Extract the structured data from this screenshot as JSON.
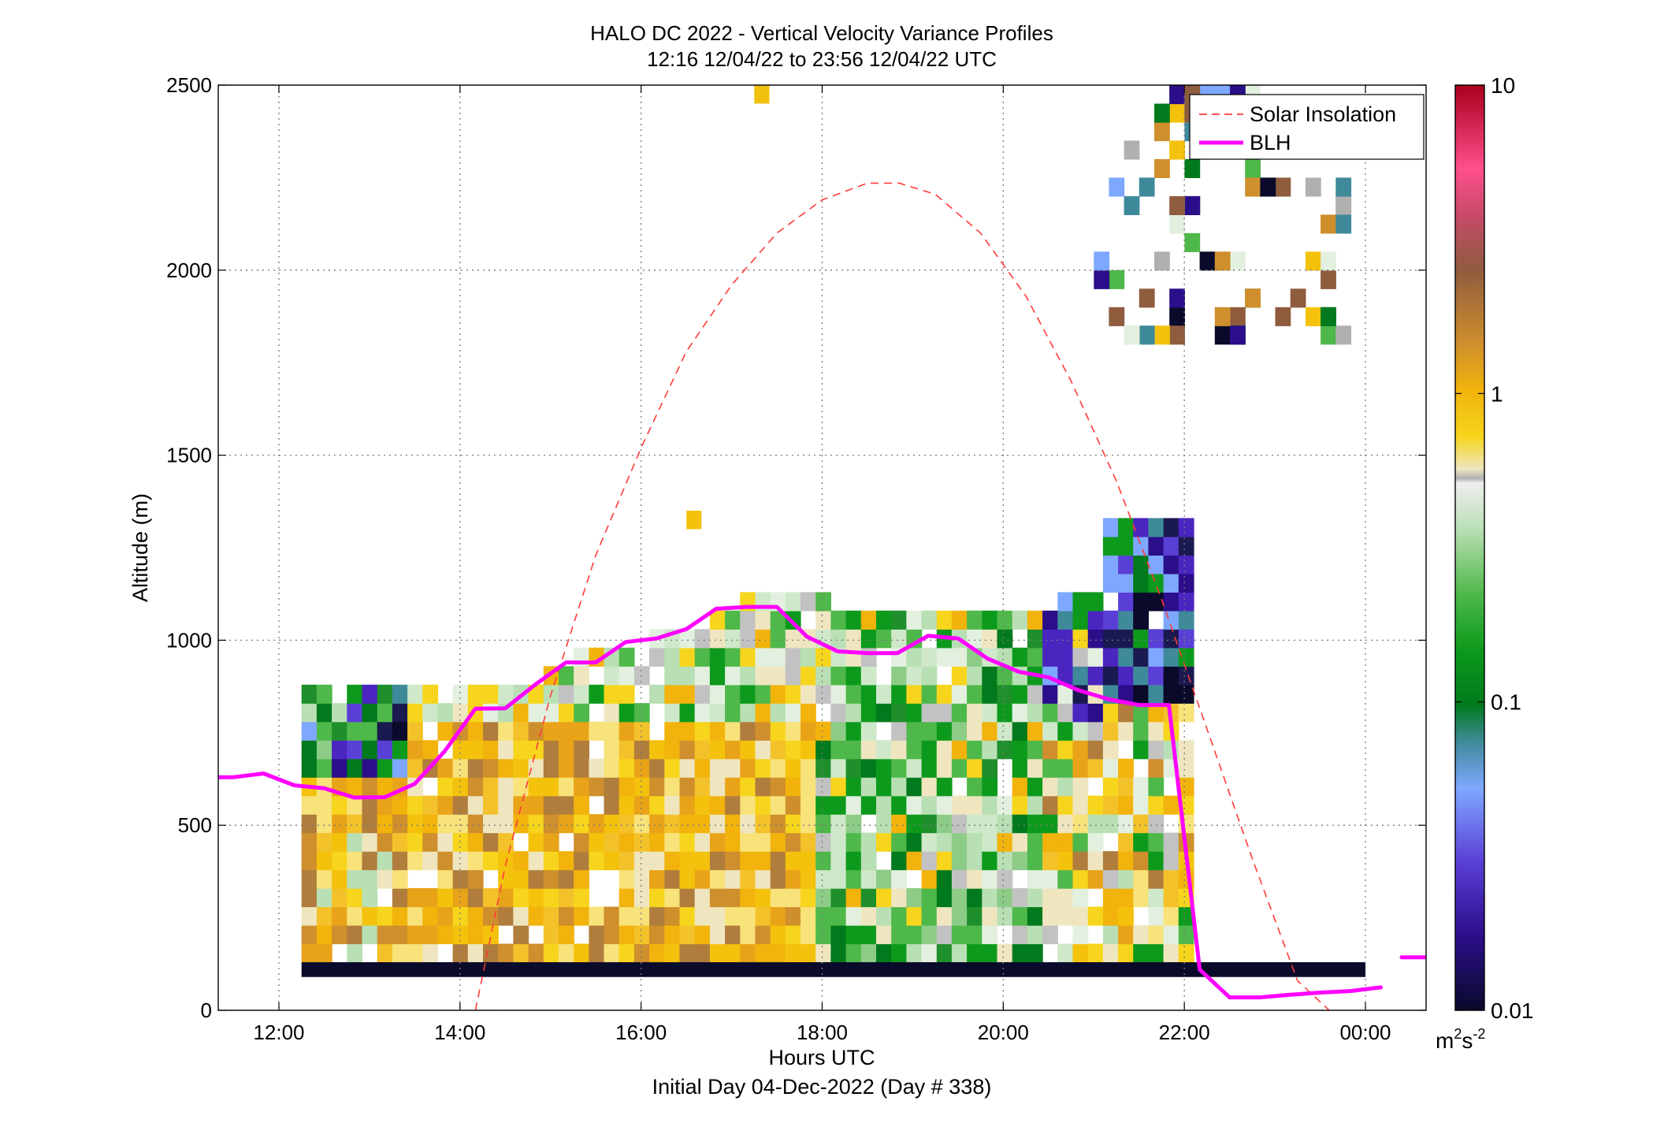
{
  "chart_data": {
    "type": "heatmap",
    "title": "HALO DC 2022 - Vertical Velocity Variance Profiles",
    "subtitle": "12:16 12/04/22 to 23:56 12/04/22  UTC",
    "xlabel": "Hours UTC",
    "footer": "Initial Day 04-Dec-2022 (Day # 338)",
    "ylabel": "Altitude (m)",
    "x_ticks": [
      "12:00",
      "14:00",
      "16:00",
      "18:00",
      "20:00",
      "22:00",
      "00:00"
    ],
    "x_tick_hours": [
      12,
      14,
      16,
      18,
      20,
      22,
      24
    ],
    "xlim_hours": [
      11.33,
      24.67
    ],
    "y_ticks": [
      "0",
      "500",
      "1000",
      "1500",
      "2000",
      "2500"
    ],
    "ylim": [
      0,
      2500
    ],
    "grid": true,
    "legend_position": "top-right",
    "colorbar": {
      "ticks": [
        "0.01",
        "0.1",
        "1",
        "10"
      ],
      "range": [
        0.01,
        10
      ],
      "scale": "log",
      "units_base": "m",
      "units_exp1": "2",
      "units_mid": "s",
      "units_exp2": "-2"
    },
    "series": [
      {
        "name": "Solar Insolation",
        "style": "dashed",
        "color": "#ff3a3a",
        "x": [
          14.17,
          14.5,
          15.0,
          15.5,
          16.0,
          16.5,
          17.0,
          17.5,
          18.0,
          18.5,
          18.85,
          19.25,
          19.75,
          20.25,
          20.75,
          21.25,
          21.75,
          22.25,
          22.75,
          23.25,
          23.6
        ],
        "y": [
          0,
          390,
          850,
          1230,
          1520,
          1780,
          1960,
          2100,
          2190,
          2235,
          2235,
          2205,
          2100,
          1930,
          1700,
          1430,
          1110,
          760,
          410,
          80,
          0
        ]
      },
      {
        "name": "BLH",
        "style": "solid",
        "color": "#ff00ff",
        "x": [
          11.33,
          11.5,
          11.83,
          12.17,
          12.5,
          12.83,
          13.17,
          13.5,
          13.83,
          14.17,
          14.5,
          14.83,
          15.17,
          15.5,
          15.83,
          16.17,
          16.5,
          16.83,
          17.17,
          17.5,
          17.83,
          18.17,
          18.5,
          18.83,
          19.17,
          19.5,
          19.83,
          20.17,
          20.5,
          20.83,
          21.17,
          21.5,
          21.83,
          22.17,
          22.5,
          22.83,
          23.17,
          23.5,
          23.83,
          24.17
        ],
        "y": [
          630,
          630,
          640,
          608,
          600,
          575,
          576,
          612,
          700,
          815,
          816,
          880,
          940,
          940,
          995,
          1005,
          1030,
          1085,
          1090,
          1090,
          1010,
          970,
          965,
          965,
          1012,
          1005,
          950,
          915,
          900,
          865,
          840,
          825,
          825,
          110,
          35,
          35,
          42,
          48,
          52,
          62
        ]
      },
      {
        "name": "",
        "style": "solid",
        "color": "#ff00ff",
        "x": [
          24.4,
          24.67
        ],
        "y": [
          143,
          143
        ]
      }
    ]
  }
}
